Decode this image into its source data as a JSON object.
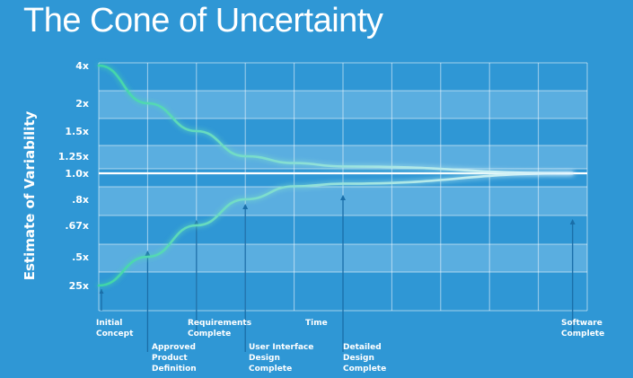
{
  "title": "The Cone of Uncertainty",
  "colors": {
    "background": "#2f97d5",
    "band": "#62b1e2",
    "grid": "#ffffff",
    "curve_start": "#3fd6a6",
    "curve_end": "#d8f2ff",
    "arrow": "#1a6ea8"
  },
  "chart_data": {
    "type": "line",
    "title": "The Cone of Uncertainty",
    "ylabel": "Estimate of Variability",
    "xlabel": "Time",
    "y_ticks": [
      "4x",
      "2x",
      "1.5x",
      "1.25x",
      "1.0x",
      ".8x",
      ".67x",
      ".5x",
      "25x"
    ],
    "milestones": [
      {
        "label": [
          "Initial",
          "Concept"
        ],
        "stage": 0
      },
      {
        "label": [
          "Approved",
          "Product",
          "Definition"
        ],
        "stage": 1
      },
      {
        "label": [
          "Requirements",
          "Complete"
        ],
        "stage": 2
      },
      {
        "label": [
          "User Interface",
          "Design",
          "Complete"
        ],
        "stage": 3
      },
      {
        "label": [
          "Detailed",
          "Design",
          "Complete"
        ],
        "stage": 5
      },
      {
        "label": [
          "Software",
          "Complete"
        ],
        "stage": 9.7
      }
    ],
    "series": [
      {
        "values": [
          [
            0,
            4
          ],
          [
            1,
            2
          ],
          [
            2,
            1.5
          ],
          [
            3,
            1.25
          ],
          [
            4,
            1.15
          ],
          [
            5,
            1.1
          ],
          [
            9.7,
            1.0
          ]
        ]
      },
      {
        "values": [
          [
            0,
            0.25
          ],
          [
            1,
            0.5
          ],
          [
            2,
            0.67
          ],
          [
            3,
            0.8
          ],
          [
            4,
            0.9
          ],
          [
            5,
            0.92
          ],
          [
            9.7,
            1.0
          ]
        ]
      }
    ],
    "grid": true
  }
}
